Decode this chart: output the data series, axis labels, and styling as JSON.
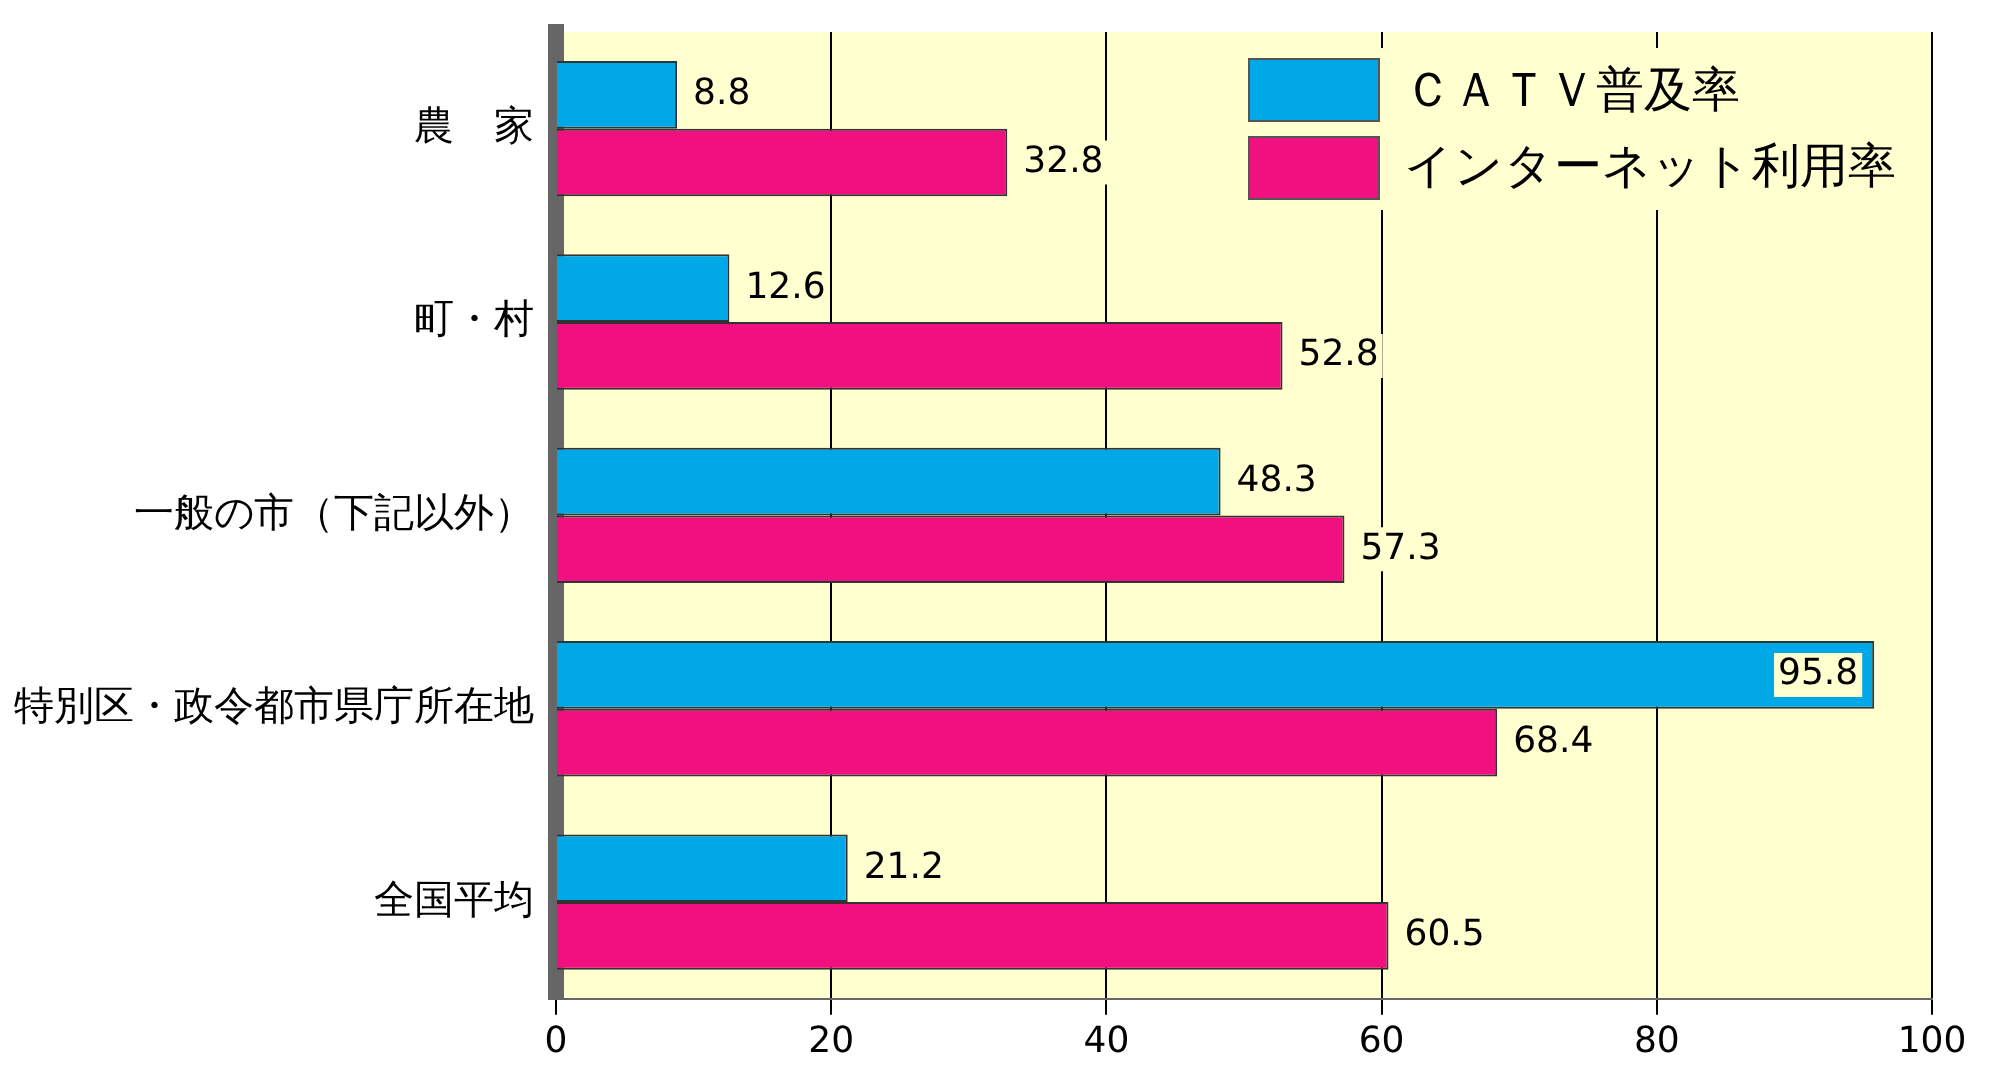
{
  "chart_data": {
    "type": "bar",
    "orientation": "horizontal",
    "categories": [
      "農　家",
      "町・村",
      "一般の市（下記以外）",
      "特別区・政令都市県庁所在地",
      "全国平均"
    ],
    "series": [
      {
        "name": "ＣＡＴＶ普及率",
        "color": "#00a8e8",
        "values": [
          8.8,
          12.6,
          48.3,
          95.8,
          21.2
        ]
      },
      {
        "name": "インターネット利用率",
        "color": "#f0107f",
        "values": [
          32.8,
          52.8,
          57.3,
          68.4,
          60.5
        ]
      }
    ],
    "xlim": [
      0,
      100
    ],
    "xticks": [
      0,
      20,
      40,
      60,
      80,
      100
    ],
    "grid": "x",
    "legend": "top right",
    "data_labels": true
  }
}
